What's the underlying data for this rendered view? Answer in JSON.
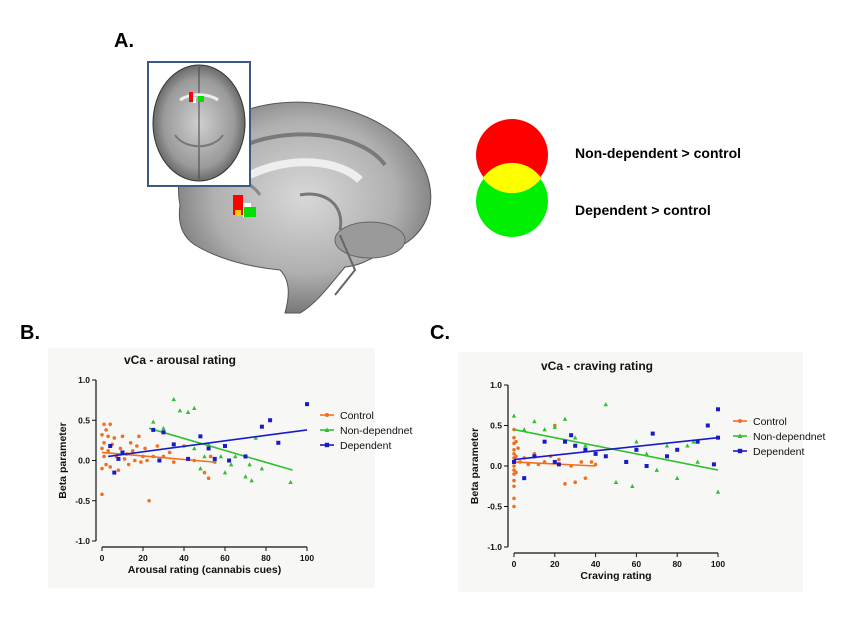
{
  "panels": {
    "a": "A.",
    "b": "B.",
    "c": "C."
  },
  "venn": {
    "non_dependent_label": "Non-dependent > control",
    "dependent_label": "Dependent > control",
    "colors": {
      "red": "#ff0000",
      "green": "#00ee00",
      "overlap": "#ffff00"
    }
  },
  "series_colors": {
    "Control": "#f07020",
    "Non-dependnet": "#30c030",
    "Dependent": "#1a1ac8"
  },
  "chart_data": [
    {
      "type": "scatter",
      "title": "vCa - arousal rating",
      "xlabel": "Arousal rating (cannabis cues)",
      "ylabel": "Beta parameter",
      "xlim": [
        0,
        100
      ],
      "ylim": [
        -1.0,
        1.0
      ],
      "xticks": [
        0,
        20,
        40,
        60,
        80,
        100
      ],
      "yticks": [
        1.0,
        0.5,
        0.0,
        -0.5,
        -1.0
      ],
      "legend_position": "right",
      "series": [
        {
          "name": "Control",
          "marker": "circle",
          "points": [
            [
              0,
              0.32
            ],
            [
              0,
              0.15
            ],
            [
              0,
              -0.1
            ],
            [
              0,
              -0.42
            ],
            [
              1,
              0.45
            ],
            [
              1,
              0.22
            ],
            [
              1,
              0.05
            ],
            [
              2,
              0.38
            ],
            [
              2,
              -0.05
            ],
            [
              3,
              0.3
            ],
            [
              3,
              0.12
            ],
            [
              4,
              0.45
            ],
            [
              4,
              -0.08
            ],
            [
              5,
              0.2
            ],
            [
              6,
              0.28
            ],
            [
              7,
              0.05
            ],
            [
              8,
              -0.12
            ],
            [
              9,
              0.15
            ],
            [
              10,
              0.3
            ],
            [
              11,
              0.02
            ],
            [
              12,
              0.08
            ],
            [
              13,
              -0.05
            ],
            [
              14,
              0.22
            ],
            [
              15,
              0.12
            ],
            [
              16,
              0.0
            ],
            [
              17,
              0.18
            ],
            [
              18,
              0.3
            ],
            [
              19,
              -0.02
            ],
            [
              20,
              0.05
            ],
            [
              21,
              0.15
            ],
            [
              22,
              0.0
            ],
            [
              23,
              -0.5
            ],
            [
              25,
              0.05
            ],
            [
              27,
              0.18
            ],
            [
              28,
              0.0
            ],
            [
              30,
              0.05
            ],
            [
              33,
              0.1
            ],
            [
              35,
              -0.02
            ],
            [
              40,
              0.18
            ],
            [
              45,
              0.0
            ],
            [
              50,
              -0.15
            ],
            [
              52,
              -0.22
            ],
            [
              53,
              0.05
            ],
            [
              55,
              -0.02
            ]
          ],
          "fit": [
            [
              0,
              0.1
            ],
            [
              55,
              -0.02
            ]
          ]
        },
        {
          "name": "Non-dependnet",
          "marker": "triangle",
          "points": [
            [
              25,
              0.48
            ],
            [
              30,
              0.4
            ],
            [
              35,
              0.76
            ],
            [
              38,
              0.62
            ],
            [
              42,
              0.6
            ],
            [
              45,
              0.65
            ],
            [
              45,
              0.15
            ],
            [
              48,
              -0.1
            ],
            [
              50,
              0.05
            ],
            [
              52,
              0.2
            ],
            [
              55,
              0.0
            ],
            [
              58,
              0.05
            ],
            [
              60,
              -0.15
            ],
            [
              63,
              -0.05
            ],
            [
              65,
              0.05
            ],
            [
              70,
              -0.2
            ],
            [
              72,
              -0.05
            ],
            [
              73,
              -0.25
            ],
            [
              75,
              0.28
            ],
            [
              78,
              -0.1
            ],
            [
              92,
              -0.27
            ]
          ],
          "fit": [
            [
              23,
              0.4
            ],
            [
              93,
              -0.12
            ]
          ]
        },
        {
          "name": "Dependent",
          "marker": "square",
          "points": [
            [
              4,
              0.18
            ],
            [
              6,
              -0.15
            ],
            [
              8,
              0.02
            ],
            [
              10,
              0.1
            ],
            [
              25,
              0.38
            ],
            [
              28,
              0.0
            ],
            [
              30,
              0.35
            ],
            [
              35,
              0.2
            ],
            [
              42,
              0.02
            ],
            [
              48,
              0.3
            ],
            [
              52,
              0.15
            ],
            [
              55,
              0.02
            ],
            [
              60,
              0.18
            ],
            [
              62,
              0.0
            ],
            [
              70,
              0.05
            ],
            [
              78,
              0.42
            ],
            [
              82,
              0.5
            ],
            [
              86,
              0.22
            ],
            [
              100,
              0.7
            ]
          ],
          "fit": [
            [
              3,
              0.05
            ],
            [
              100,
              0.38
            ]
          ]
        }
      ]
    },
    {
      "type": "scatter",
      "title": "vCa - craving rating",
      "xlabel": "Craving rating",
      "ylabel": "Beta parameter",
      "xlim": [
        0,
        100
      ],
      "ylim": [
        -1.0,
        1.0
      ],
      "xticks": [
        0,
        20,
        40,
        60,
        80,
        100
      ],
      "yticks": [
        1.0,
        0.5,
        0.0,
        -0.5,
        -1.0
      ],
      "legend_position": "right",
      "series": [
        {
          "name": "Control",
          "marker": "circle",
          "points": [
            [
              0,
              0.45
            ],
            [
              0,
              0.35
            ],
            [
              0,
              0.28
            ],
            [
              0,
              0.2
            ],
            [
              0,
              0.15
            ],
            [
              0,
              0.1
            ],
            [
              0,
              0.05
            ],
            [
              0,
              0.0
            ],
            [
              0,
              -0.05
            ],
            [
              0,
              -0.1
            ],
            [
              0,
              -0.18
            ],
            [
              0,
              -0.25
            ],
            [
              0,
              -0.4
            ],
            [
              0,
              -0.5
            ],
            [
              1,
              0.3
            ],
            [
              1,
              0.12
            ],
            [
              1,
              -0.08
            ],
            [
              2,
              0.22
            ],
            [
              3,
              0.05
            ],
            [
              5,
              0.1
            ],
            [
              7,
              0.02
            ],
            [
              10,
              0.15
            ],
            [
              12,
              0.02
            ],
            [
              15,
              0.05
            ],
            [
              18,
              0.12
            ],
            [
              20,
              0.5
            ],
            [
              22,
              0.08
            ],
            [
              25,
              -0.22
            ],
            [
              28,
              0.0
            ],
            [
              30,
              -0.2
            ],
            [
              33,
              0.05
            ],
            [
              35,
              -0.15
            ],
            [
              38,
              0.05
            ],
            [
              40,
              0.02
            ]
          ],
          "fit": [
            [
              0,
              0.05
            ],
            [
              40,
              0.0
            ]
          ]
        },
        {
          "name": "Non-dependnet",
          "marker": "triangle",
          "points": [
            [
              0,
              0.62
            ],
            [
              5,
              0.45
            ],
            [
              10,
              0.55
            ],
            [
              15,
              0.45
            ],
            [
              20,
              0.48
            ],
            [
              25,
              0.58
            ],
            [
              30,
              0.35
            ],
            [
              35,
              0.25
            ],
            [
              40,
              0.15
            ],
            [
              45,
              0.76
            ],
            [
              50,
              -0.2
            ],
            [
              55,
              0.05
            ],
            [
              58,
              -0.25
            ],
            [
              60,
              0.3
            ],
            [
              65,
              0.15
            ],
            [
              70,
              -0.05
            ],
            [
              75,
              0.25
            ],
            [
              80,
              -0.15
            ],
            [
              85,
              0.25
            ],
            [
              88,
              0.3
            ],
            [
              90,
              0.05
            ],
            [
              100,
              -0.32
            ]
          ],
          "fit": [
            [
              0,
              0.45
            ],
            [
              100,
              -0.05
            ]
          ]
        },
        {
          "name": "Dependent",
          "marker": "square",
          "points": [
            [
              0,
              0.05
            ],
            [
              5,
              -0.15
            ],
            [
              10,
              0.12
            ],
            [
              15,
              0.3
            ],
            [
              20,
              0.05
            ],
            [
              22,
              0.02
            ],
            [
              25,
              0.3
            ],
            [
              28,
              0.38
            ],
            [
              30,
              0.25
            ],
            [
              35,
              0.2
            ],
            [
              40,
              0.15
            ],
            [
              45,
              0.12
            ],
            [
              55,
              0.05
            ],
            [
              60,
              0.2
            ],
            [
              65,
              0.0
            ],
            [
              68,
              0.4
            ],
            [
              75,
              0.12
            ],
            [
              80,
              0.2
            ],
            [
              90,
              0.3
            ],
            [
              95,
              0.5
            ],
            [
              98,
              0.02
            ],
            [
              100,
              0.7
            ],
            [
              100,
              0.35
            ]
          ],
          "fit": [
            [
              0,
              0.08
            ],
            [
              100,
              0.35
            ]
          ]
        }
      ]
    }
  ]
}
